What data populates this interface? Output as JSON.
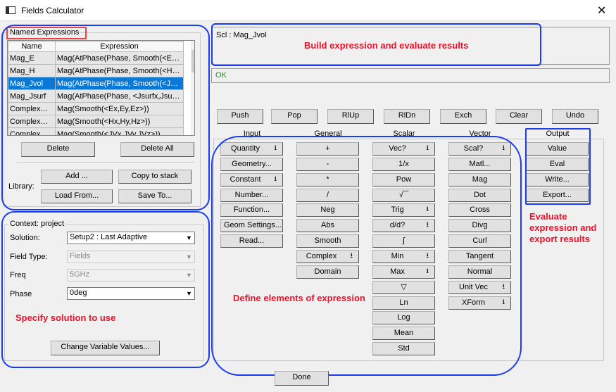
{
  "window": {
    "title": "Fields Calculator",
    "close": "✕"
  },
  "named": {
    "title": "Named Expressions",
    "columns": [
      "Name",
      "Expression"
    ],
    "rows": [
      [
        "Mag_E",
        "Mag(AtPhase(Phase, Smooth(<Ex,E..."
      ],
      [
        "Mag_H",
        "Mag(AtPhase(Phase, Smooth(<Hx,H..."
      ],
      [
        "Mag_Jvol",
        "Mag(AtPhase(Phase, Smooth(<JVx,J..."
      ],
      [
        "Mag_Jsurf",
        "Mag(AtPhase(Phase, <Jsurfx,Jsurfy,J..."
      ],
      [
        "ComplexMa...",
        "Mag(Smooth(<Ex,Ey,Ez>))"
      ],
      [
        "ComplexMa...",
        "Mag(Smooth(<Hx,Hy,Hz>))"
      ],
      [
        "ComplexMa...",
        "Mag(Smooth(<JVx,JVy,JVz>))"
      ]
    ],
    "selected_row": 2,
    "delete": "Delete",
    "delete_all": "Delete All",
    "library": "Library:",
    "add": "Add ...",
    "copy": "Copy to stack",
    "load": "Load From...",
    "save": "Save To..."
  },
  "context": {
    "title": "Context: project",
    "solution_label": "Solution:",
    "solution": "Setup2 : Last Adaptive",
    "field_type_label": "Field Type:",
    "field_type": "Fields",
    "freq_label": "Freq",
    "freq": "5GHz",
    "phase_label": "Phase",
    "phase": "0deg",
    "change_vars": "Change Variable Values..."
  },
  "stack": {
    "top": "Scl : Mag_Jvol",
    "status": "OK",
    "status_color": "#1a9a1a"
  },
  "stack_buttons": [
    "Push",
    "Pop",
    "RlUp",
    "RlDn",
    "Exch",
    "Clear",
    "Undo"
  ],
  "columns": {
    "Input": [
      {
        "l": "Quantity",
        "dd": true
      },
      {
        "l": "Geometry..."
      },
      {
        "l": "Constant",
        "dd": true
      },
      {
        "l": "Number..."
      },
      {
        "l": "Function..."
      },
      {
        "l": "Geom Settings..."
      },
      {
        "l": "Read..."
      }
    ],
    "General": [
      {
        "l": "+"
      },
      {
        "l": "-"
      },
      {
        "l": "*"
      },
      {
        "l": "/"
      },
      {
        "l": "Neg"
      },
      {
        "l": "Abs"
      },
      {
        "l": "Smooth"
      },
      {
        "l": "Complex",
        "dd": true
      },
      {
        "l": "Domain"
      }
    ],
    "Scalar": [
      {
        "l": "Vec?",
        "dd": true
      },
      {
        "l": "1/x"
      },
      {
        "l": "Pow"
      },
      {
        "l": "√‾‾"
      },
      {
        "l": "Trig",
        "dd": true
      },
      {
        "l": "d/d?",
        "dd": true
      },
      {
        "l": "∫"
      },
      {
        "l": "Min",
        "dd": true
      },
      {
        "l": "Max",
        "dd": true
      },
      {
        "l": "▽"
      },
      {
        "l": "Ln"
      },
      {
        "l": "Log"
      },
      {
        "l": "Mean"
      },
      {
        "l": "Std"
      }
    ],
    "Vector": [
      {
        "l": "Scal?",
        "dd": true
      },
      {
        "l": "Matl..."
      },
      {
        "l": "Mag"
      },
      {
        "l": "Dot"
      },
      {
        "l": "Cross"
      },
      {
        "l": "Divg"
      },
      {
        "l": "Curl"
      },
      {
        "l": "Tangent"
      },
      {
        "l": "Normal"
      },
      {
        "l": "Unit Vec",
        "dd": true
      },
      {
        "l": "XForm",
        "dd": true
      }
    ],
    "Output": [
      {
        "l": "Value"
      },
      {
        "l": "Eval"
      },
      {
        "l": "Write..."
      },
      {
        "l": "Export..."
      }
    ]
  },
  "annotations": {
    "build": "Build expression and evaluate results",
    "define": "Define elements of expression",
    "evaluate": "Evaluate expression and export results",
    "solution": "Specify solution to use"
  },
  "done": "Done"
}
